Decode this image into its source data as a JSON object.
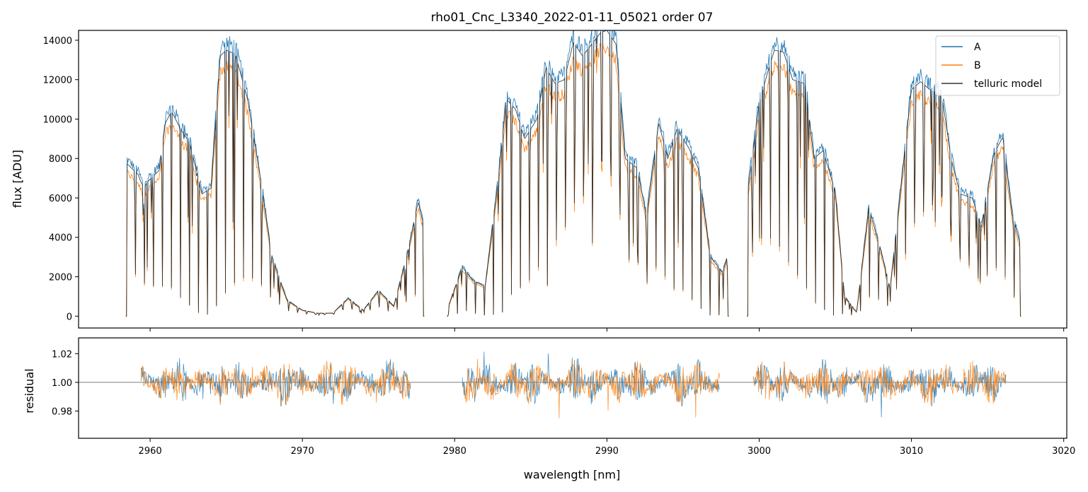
{
  "chart_data": [
    {
      "type": "line",
      "title": "rho01_Cnc_L3340_2022-01-11_05021  order 07",
      "xlabel": "",
      "ylabel": "flux [ADU]",
      "xlim": [
        2955.3,
        3020.2
      ],
      "ylim": [
        -600,
        14500
      ],
      "xticks": [
        2960,
        2970,
        2980,
        2990,
        3000,
        3010,
        3020
      ],
      "yticks": [
        0,
        2000,
        4000,
        6000,
        8000,
        10000,
        12000,
        14000
      ],
      "ytick_labels": [
        "0",
        "2000",
        "4000",
        "6000",
        "8000",
        "10000",
        "12000",
        "14000"
      ],
      "legend": {
        "placement": "top-right",
        "entries": [
          "A",
          "B",
          "telluric model"
        ]
      },
      "series": [
        {
          "name": "A",
          "color": "#1f77b4"
        },
        {
          "name": "B",
          "color": "#ff7f0e"
        },
        {
          "name": "telluric model",
          "color": "#222222"
        }
      ],
      "continuum_segments": [
        {
          "x": [
            2958.4,
            2959.2,
            2959.4,
            2959.6,
            2959.8,
            2960.6,
            2961.0,
            2961.4,
            2962.0,
            2962.6,
            2963.4,
            2964.0,
            2964.6,
            2965.0,
            2965.6,
            2966.4,
            2967.2,
            2968.0,
            2969.0,
            2970.0,
            2971.0,
            2972.0,
            2973.0,
            2974.0,
            2975.0,
            2976.0,
            2977.0,
            2977.6,
            2978.0
          ],
          "y": [
            7800,
            7200,
            6800,
            6500,
            6800,
            7400,
            9800,
            10400,
            9500,
            8800,
            6200,
            6500,
            13200,
            13500,
            13300,
            11000,
            7200,
            3000,
            800,
            300,
            150,
            150,
            900,
            300,
            1300,
            500,
            3500,
            5800,
            4500
          ]
        },
        {
          "x": [
            2979.5,
            2980.5,
            2981.2,
            2982.0,
            2982.8,
            2983.4,
            2984.0,
            2984.6,
            2985.4,
            2986.0,
            2986.6,
            2987.2,
            2987.8,
            2988.4,
            2989.0,
            2989.6,
            2990.0,
            2990.6,
            2991.2,
            2992.0,
            2992.6,
            2993.4,
            2994.0,
            2994.6,
            2995.4,
            2996.0,
            2996.8,
            2997.6,
            2998.0
          ],
          "y": [
            300,
            2500,
            1800,
            1500,
            6500,
            11000,
            10500,
            9000,
            10000,
            12600,
            11800,
            12000,
            13900,
            13200,
            13800,
            14400,
            14500,
            13800,
            8000,
            7500,
            5000,
            9800,
            8000,
            9500,
            8500,
            7500,
            3000,
            2200,
            3300
          ]
        },
        {
          "x": [
            2999.2,
            3000.0,
            3000.6,
            3001.0,
            3001.6,
            3002.2,
            3003.0,
            3003.6,
            3004.2,
            3005.0,
            3005.6,
            3006.4,
            3007.2,
            3008.0,
            3008.6,
            3009.4,
            3010.0,
            3010.6,
            3011.2,
            3012.0,
            3012.6,
            3013.2,
            3014.0,
            3014.6,
            3015.4,
            3016.0,
            3016.6,
            3017.2
          ],
          "y": [
            6000,
            10800,
            12500,
            13500,
            13400,
            12000,
            11800,
            8000,
            8400,
            6300,
            1000,
            200,
            5500,
            3300,
            1400,
            7200,
            11500,
            11900,
            11500,
            11200,
            8000,
            6200,
            6000,
            4500,
            8200,
            9100,
            5200,
            3500
          ]
        }
      ]
    },
    {
      "type": "line",
      "title": "",
      "xlabel": "wavelength [nm]",
      "ylabel": "residual",
      "xlim": [
        2955.3,
        3020.2
      ],
      "ylim": [
        0.961,
        1.031
      ],
      "xticks": [
        2960,
        2970,
        2980,
        2990,
        3000,
        3010,
        3020
      ],
      "xtick_labels": [
        "2960",
        "2970",
        "2980",
        "2990",
        "3000",
        "3010",
        "3020"
      ],
      "yticks": [
        0.98,
        1.0,
        1.02
      ],
      "ytick_labels": [
        "0.98",
        "1.00",
        "1.02"
      ],
      "reference_line": 1.0,
      "segments": [
        {
          "x_start": 2959.4,
          "x_end": 2977.1
        },
        {
          "x_start": 2980.5,
          "x_end": 2997.4
        },
        {
          "x_start": 2999.6,
          "x_end": 3016.2
        }
      ],
      "series": [
        {
          "name": "A",
          "color": "#1f77b4"
        },
        {
          "name": "B",
          "color": "#ff7f0e"
        }
      ]
    }
  ]
}
